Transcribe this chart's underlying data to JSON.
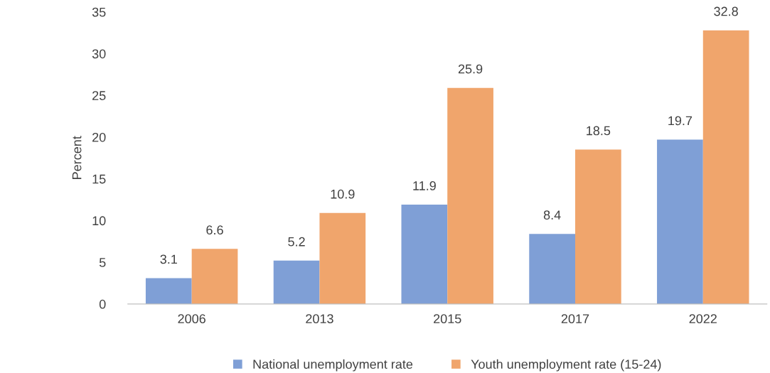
{
  "chart_data": {
    "type": "bar",
    "ylabel": "Percent",
    "categories": [
      "2006",
      "2013",
      "2015",
      "2017",
      "2022"
    ],
    "series": [
      {
        "name": "National unemployment rate",
        "color": "#7f9fd6",
        "values": [
          3.1,
          5.2,
          11.9,
          8.4,
          19.7
        ]
      },
      {
        "name": "Youth unemployment rate (15-24)",
        "color": "#f0a56c",
        "values": [
          6.6,
          10.9,
          25.9,
          18.5,
          32.8
        ]
      }
    ],
    "ylim": [
      0,
      35
    ],
    "yticks": [
      0,
      5,
      10,
      15,
      20,
      25,
      30,
      35
    ],
    "grid": false,
    "legend": "bottom",
    "data_labels": true
  }
}
